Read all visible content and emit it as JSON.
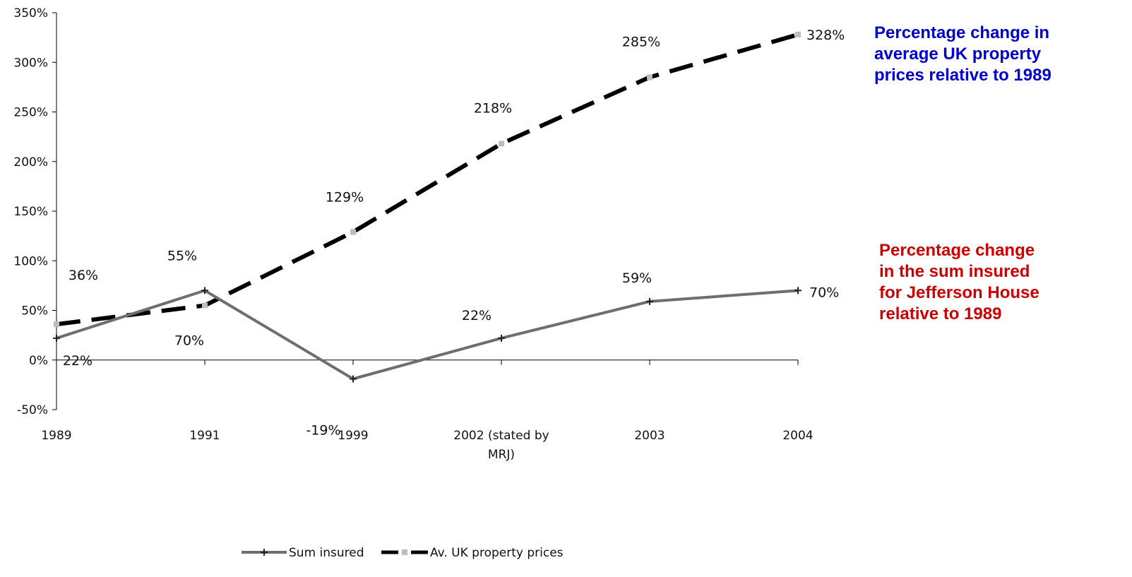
{
  "chart_data": {
    "type": "line",
    "categories": [
      "1989",
      "1991",
      "1999",
      "2002 (stated by MRJ)",
      "2003",
      "2004"
    ],
    "category_lines": [
      [
        "1989"
      ],
      [
        "1991"
      ],
      [
        "1999"
      ],
      [
        "2002 (stated by",
        "MRJ)"
      ],
      [
        "2003"
      ],
      [
        "2004"
      ]
    ],
    "ylim": [
      -0.5,
      3.5
    ],
    "yticks": [
      -0.5,
      0,
      0.5,
      1.0,
      1.5,
      2.0,
      2.5,
      3.0,
      3.5
    ],
    "ytick_labels": [
      "-50%",
      "0%",
      "50%",
      "100%",
      "150%",
      "200%",
      "250%",
      "300%",
      "350%"
    ],
    "grid": false,
    "legend_position": "bottom",
    "series": [
      {
        "name": "Sum insured",
        "values": [
          0.22,
          0.7,
          -0.19,
          0.22,
          0.59,
          0.7
        ],
        "labels": [
          "22%",
          "70%",
          "-19%",
          "22%",
          "59%",
          "70%"
        ],
        "color": "#6e6e6e",
        "style": "solid"
      },
      {
        "name": "Av. UK property prices",
        "values": [
          0.36,
          0.55,
          1.29,
          2.18,
          2.85,
          3.28
        ],
        "labels": [
          "36%",
          "55%",
          "129%",
          "218%",
          "285%",
          "328%"
        ],
        "color": "#000000",
        "style": "dashed"
      }
    ]
  },
  "annotations": {
    "property": {
      "lines": [
        "Percentage change in",
        "average UK property",
        "prices relative to 1989"
      ],
      "color": "#0000cc"
    },
    "sum_insured": {
      "lines": [
        "Percentage change",
        "in the sum insured",
        "for Jefferson House",
        "relative to 1989"
      ],
      "color": "#cc0000"
    }
  }
}
